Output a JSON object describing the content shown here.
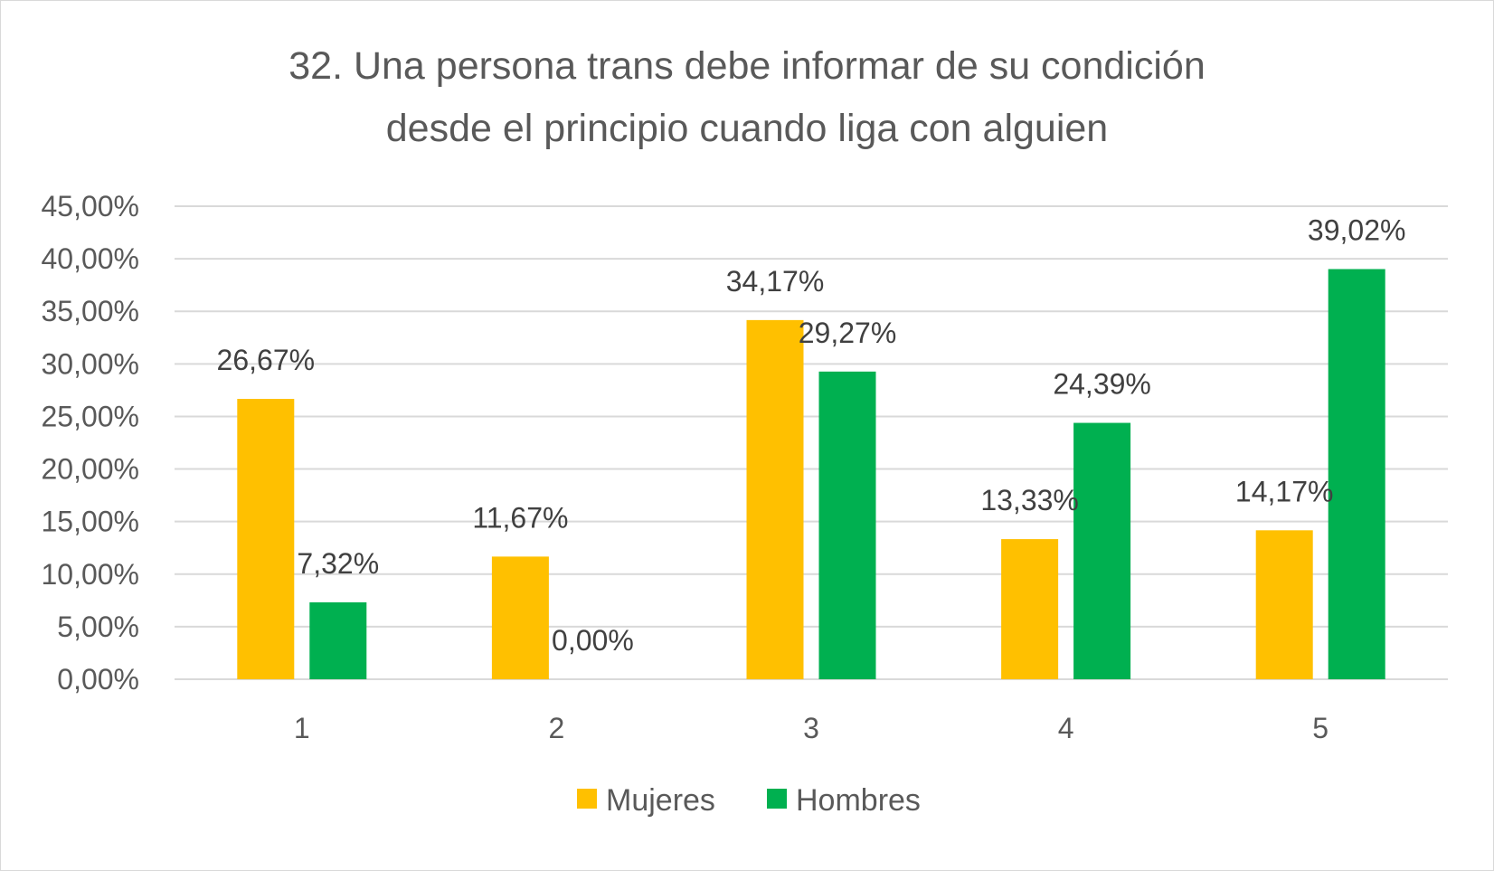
{
  "chart_data": {
    "type": "bar",
    "title_lines": [
      "32. Una persona trans debe informar de su condición",
      "desde el principio cuando liga con alguien"
    ],
    "categories": [
      "1",
      "2",
      "3",
      "4",
      "5"
    ],
    "series": [
      {
        "name": "Mujeres",
        "color": "#FFC000",
        "values": [
          26.67,
          11.67,
          34.17,
          13.33,
          14.17
        ],
        "labels": [
          "26,67%",
          "11,67%",
          "34,17%",
          "13,33%",
          "14,17%"
        ]
      },
      {
        "name": "Hombres",
        "color": "#00B050",
        "values": [
          7.32,
          0.0,
          29.27,
          24.39,
          39.02
        ],
        "labels": [
          "7,32%",
          "0,00%",
          "29,27%",
          "24,39%",
          "39,02%"
        ]
      }
    ],
    "y_ticks": [
      0,
      5,
      10,
      15,
      20,
      25,
      30,
      35,
      40,
      45
    ],
    "y_tick_labels": [
      "0,00%",
      "5,00%",
      "10,00%",
      "15,00%",
      "20,00%",
      "25,00%",
      "30,00%",
      "35,00%",
      "40,00%",
      "45,00%"
    ],
    "ylim": [
      0,
      45
    ],
    "xlabel": "",
    "ylabel": "",
    "grid": true,
    "legend_position": "bottom"
  }
}
